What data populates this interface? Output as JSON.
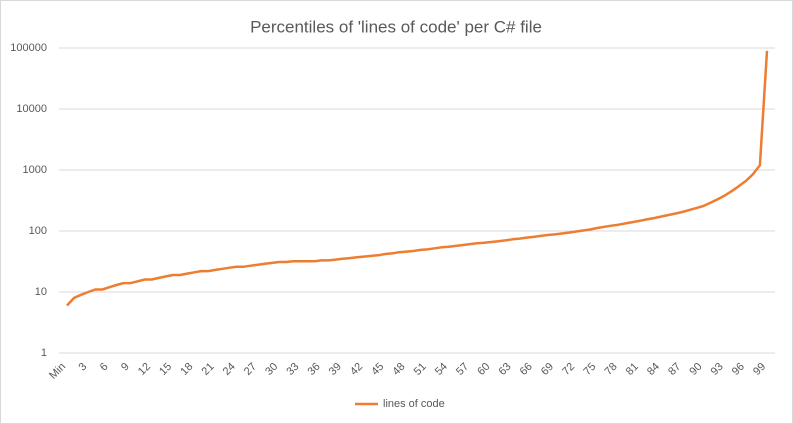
{
  "chart_data": {
    "type": "line",
    "title": "Percentiles of 'lines of code' per C# file",
    "categories": [
      "Min",
      null,
      null,
      "3",
      null,
      null,
      "6",
      null,
      null,
      "9",
      null,
      null,
      "12",
      null,
      null,
      "15",
      null,
      null,
      "18",
      null,
      null,
      "21",
      null,
      null,
      "24",
      null,
      null,
      "27",
      null,
      null,
      "30",
      null,
      null,
      "33",
      null,
      null,
      "36",
      null,
      null,
      "39",
      null,
      null,
      "42",
      null,
      null,
      "45",
      null,
      null,
      "48",
      null,
      null,
      "51",
      null,
      null,
      "54",
      null,
      null,
      "57",
      null,
      null,
      "60",
      null,
      null,
      "63",
      null,
      null,
      "66",
      null,
      null,
      "69",
      null,
      null,
      "72",
      null,
      null,
      "75",
      null,
      null,
      "78",
      null,
      null,
      "81",
      null,
      null,
      "84",
      null,
      null,
      "87",
      null,
      null,
      "90",
      null,
      null,
      "93",
      null,
      null,
      "96",
      null,
      null,
      "99"
    ],
    "series": [
      {
        "name": "lines of code",
        "color": "#ed7d31",
        "values": [
          6,
          8,
          9,
          10,
          11,
          11,
          12,
          13,
          14,
          14,
          15,
          16,
          16,
          17,
          18,
          19,
          19,
          20,
          21,
          22,
          22,
          23,
          24,
          25,
          26,
          26,
          27,
          28,
          29,
          30,
          31,
          31,
          32,
          32,
          32,
          32,
          33,
          33,
          34,
          35,
          36,
          37,
          38,
          39,
          40,
          42,
          43,
          45,
          46,
          47,
          49,
          50,
          52,
          54,
          55,
          57,
          59,
          61,
          63,
          64,
          66,
          68,
          70,
          73,
          75,
          78,
          80,
          83,
          86,
          88,
          91,
          94,
          98,
          102,
          106,
          112,
          117,
          122,
          127,
          133,
          140,
          147,
          155,
          163,
          172,
          182,
          193,
          205,
          220,
          237,
          257,
          290,
          330,
          380,
          450,
          540,
          660,
          850,
          1200,
          90000
        ]
      }
    ],
    "ylim": [
      1,
      100000
    ],
    "yticks": [
      1,
      10,
      100,
      1000,
      10000,
      100000
    ],
    "log_y": true,
    "grid": true,
    "legend": "bottom"
  }
}
